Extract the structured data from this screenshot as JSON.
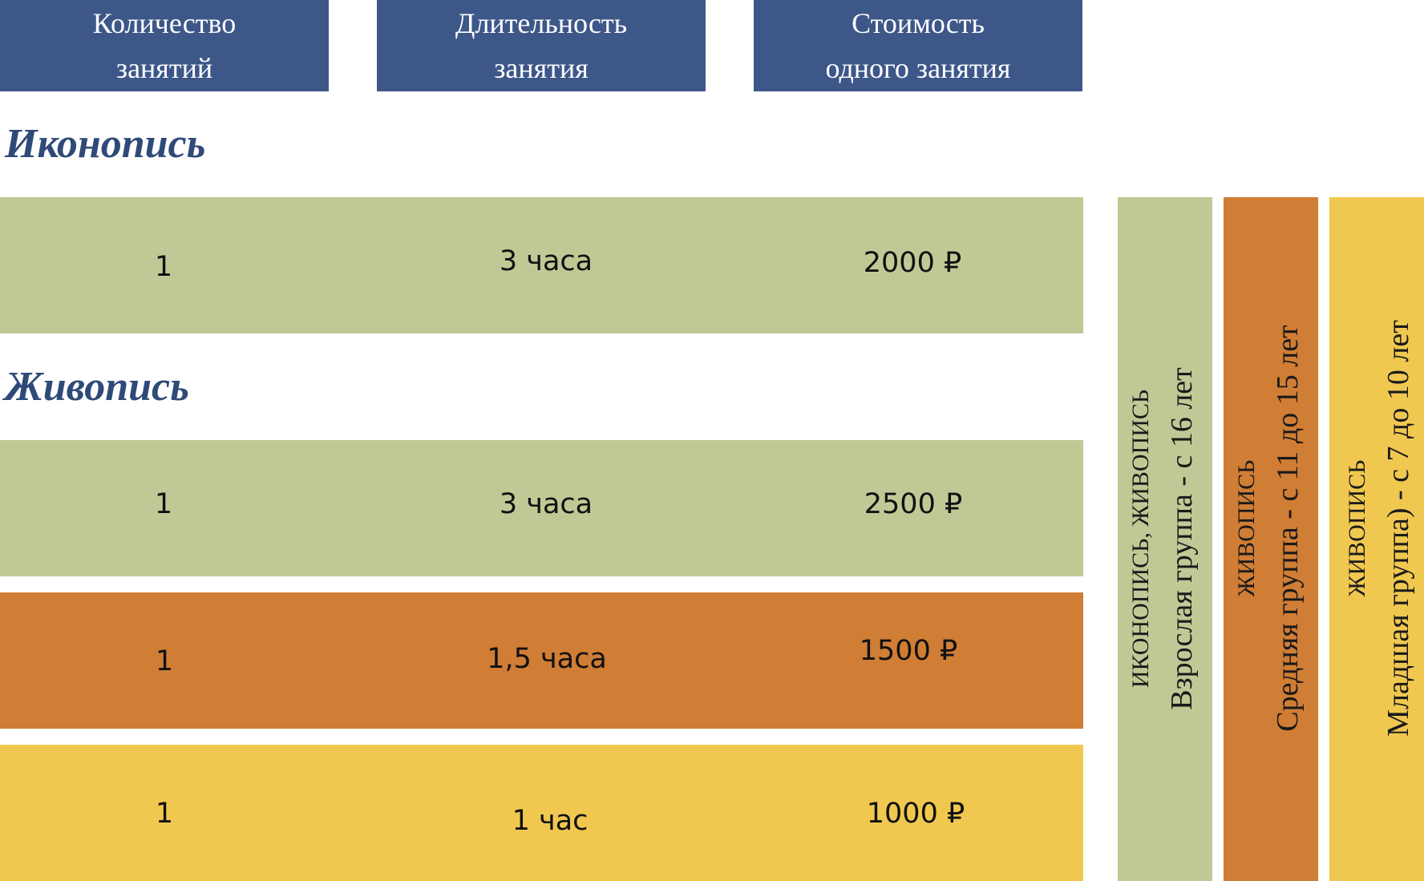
{
  "headers": {
    "count": [
      "Количество",
      "занятий"
    ],
    "duration": [
      "Длительность",
      "занятия"
    ],
    "price": [
      "Стоимость",
      "одного занятия"
    ]
  },
  "sections": {
    "iconography": "Иконопись",
    "painting": "Живопись"
  },
  "rows": [
    {
      "count": "1",
      "duration": "3 часа",
      "price": "2000 ₽",
      "color": "#bfc996"
    },
    {
      "count": "1",
      "duration": "3 часа",
      "price": "2500 ₽",
      "color": "#bfc996"
    },
    {
      "count": "1",
      "duration": "1,5 часа",
      "price": "1500 ₽",
      "color": "#d07d35"
    },
    {
      "count": "1",
      "duration": "1 час",
      "price": "1000 ₽",
      "color": "#f0c850"
    }
  ],
  "groups": [
    {
      "subject": "ИКОНОПИСЬ, ЖИВОПИСЬ",
      "group": "Взрослая группа - с 16 лет",
      "color": "#bfc996"
    },
    {
      "subject": "ЖИВОПИСЬ",
      "group": "Средняя группа - с 11 до 15 лет",
      "color": "#d07d35"
    },
    {
      "subject": "ЖИВОПИСЬ",
      "group": "Младшая группа) - с 7 до 10 лет",
      "color": "#f0c850"
    }
  ]
}
